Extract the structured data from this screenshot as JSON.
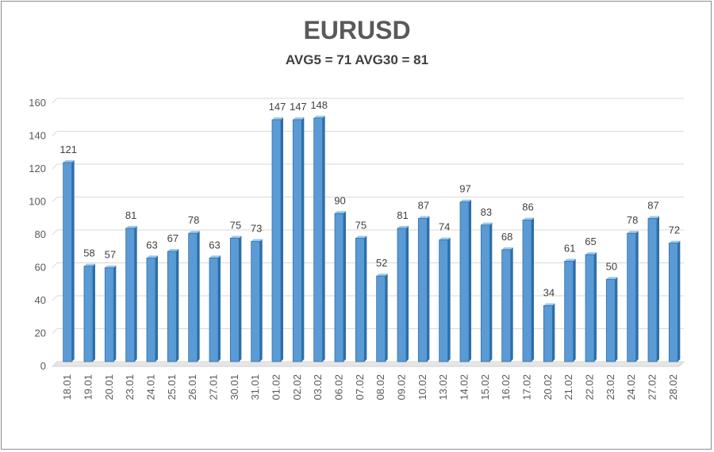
{
  "chart_data": {
    "type": "bar",
    "title": "EURUSD",
    "subtitle": "AVG5 = 71 AVG30 = 81",
    "xlabel": "",
    "ylabel": "",
    "ylim": [
      0,
      160
    ],
    "yticks": [
      0,
      20,
      40,
      60,
      80,
      100,
      120,
      140,
      160
    ],
    "grid": true,
    "legend": "none",
    "bar_color": "#5b9bd5",
    "bar_dark": "#2e6fa8",
    "bar_light": "#9cc8ee",
    "categories": [
      "18.01",
      "19.01",
      "20.01",
      "23.01",
      "24.01",
      "25.01",
      "26.01",
      "27.01",
      "30.01",
      "31.01",
      "01.02",
      "02.02",
      "03.02",
      "06.02",
      "07.02",
      "08.02",
      "09.02",
      "10.02",
      "13.02",
      "14.02",
      "15.02",
      "16.02",
      "17.02",
      "20.02",
      "21.02",
      "22.02",
      "23.02",
      "24.02",
      "27.02",
      "28.02"
    ],
    "values": [
      121,
      58,
      57,
      81,
      63,
      67,
      78,
      63,
      75,
      73,
      147,
      147,
      148,
      90,
      75,
      52,
      81,
      87,
      74,
      97,
      83,
      68,
      86,
      34,
      61,
      65,
      50,
      78,
      87,
      72
    ]
  }
}
